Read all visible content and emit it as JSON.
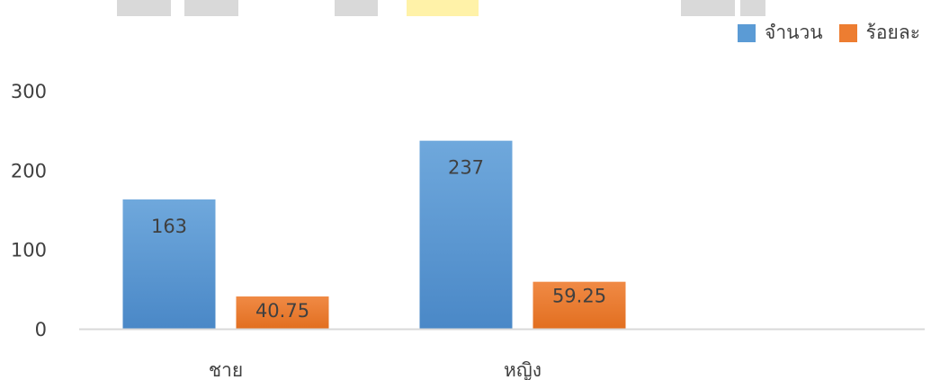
{
  "colors": {
    "series1": "#5b9bd5",
    "series2": "#ed7d31",
    "axis": "#d9d9d9",
    "text": "#404040",
    "background": "#ffffff"
  },
  "chart_data": {
    "type": "bar",
    "categories": [
      "ชาย",
      "หญิง"
    ],
    "series": [
      {
        "name": "จำนวน",
        "values": [
          163,
          237
        ],
        "color": "#5b9bd5"
      },
      {
        "name": "ร้อยละ",
        "values": [
          40.75,
          59.25
        ],
        "color": "#ed7d31"
      }
    ],
    "data_labels": [
      [
        "163",
        "237"
      ],
      [
        "40.75",
        "59.25"
      ]
    ],
    "yticks": [
      "0",
      "100",
      "200",
      "300"
    ],
    "ylim": [
      0,
      300
    ],
    "grid": false,
    "legend_position": "top-right",
    "title": "",
    "xlabel": "",
    "ylabel": ""
  }
}
